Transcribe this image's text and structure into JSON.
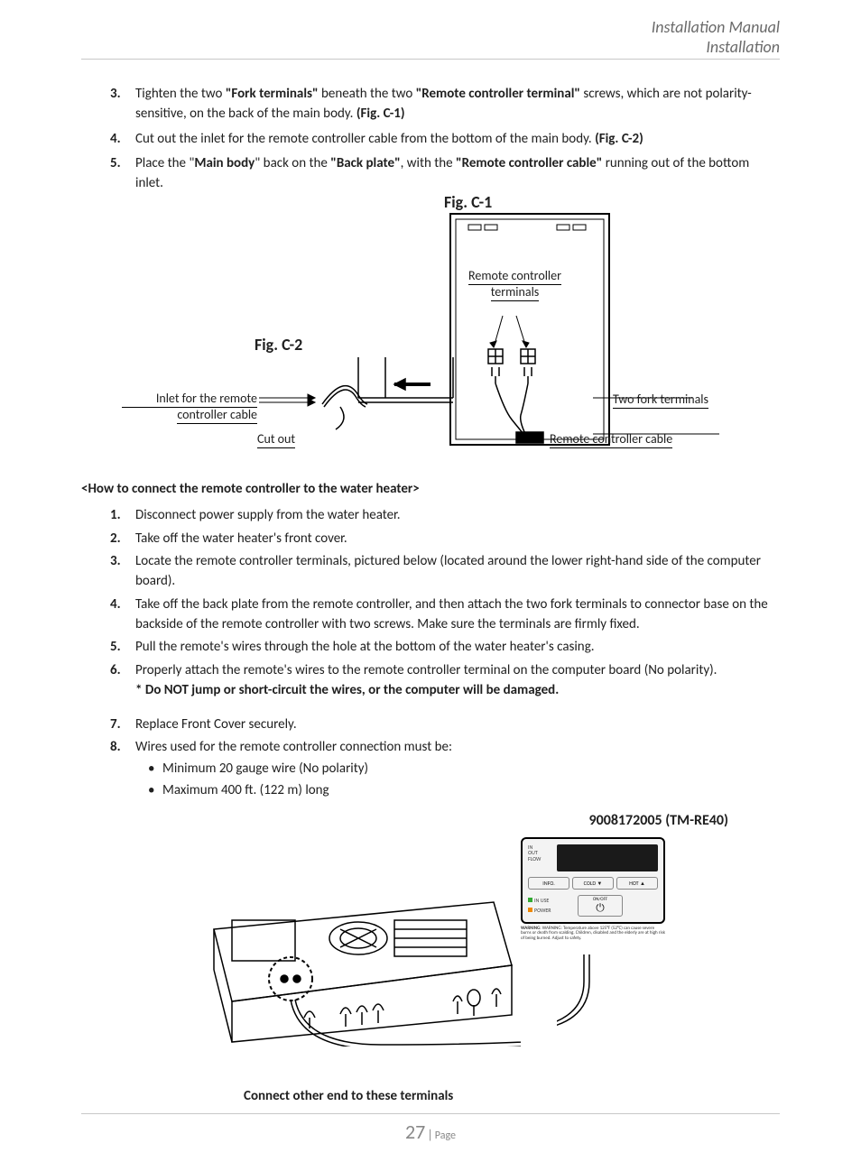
{
  "header": {
    "line1": "Installation Manual",
    "line2": "Installation"
  },
  "top_steps": [
    {
      "n": "3.",
      "html": "Tighten the two <b>\"Fork terminals\"</b> beneath the two <b>\"Remote controller terminal\"</b> screws, which are not polarity-sensitive, on the back of the main body. <b>(Fig. C-1)</b>"
    },
    {
      "n": "4.",
      "html": "Cut out the inlet for the remote controller cable from the bottom of the main body. <b>(Fig. C-2)</b>"
    },
    {
      "n": "5.",
      "html": "Place the \"<b>Main body</b>\" back on the <b>\"Back plate\"</b>, with the <b>\"Remote controller cable\"</b> running out of the bottom inlet."
    }
  ],
  "figs": {
    "c1_title": "Fig. C-1",
    "c2_title": "Fig. C-2",
    "labels": {
      "remote_terminals": "Remote controller\nterminals",
      "two_fork": "Two fork terminals",
      "remote_cable": "Remote controller cable",
      "inlet_line1": "Inlet for the remote",
      "inlet_line2": "controller cable",
      "cutout": "Cut out"
    }
  },
  "section_head": "<How to connect the remote controller to the water heater>",
  "steps": [
    {
      "n": "1.",
      "text": "Disconnect power supply from the water heater."
    },
    {
      "n": "2.",
      "text": "Take off the water heater's front cover."
    },
    {
      "n": "3.",
      "text": "Locate the remote controller terminals, pictured below (located around the lower right-hand side of the computer board)."
    },
    {
      "n": "4.",
      "text": "Take off the back plate from the remote controller, and then attach the two fork terminals to connector base on the backside of the remote controller with two screws.  Make sure the terminals are firmly fixed."
    },
    {
      "n": "5.",
      "text": "Pull the remote's wires through the hole at the bottom of the water heater's casing."
    },
    {
      "n": "6.",
      "text": "Properly attach the remote's wires to the remote controller terminal on the computer board (No polarity)."
    }
  ],
  "warning": "* Do NOT jump or short-circuit the wires, or the computer will be damaged.",
  "steps2": [
    {
      "n": "7.",
      "text": "Replace Front Cover securely."
    },
    {
      "n": "8.",
      "text": "Wires used for the remote controller connection must be:"
    }
  ],
  "bullets": [
    "Minimum 20 gauge wire (No polarity)",
    "Maximum 400 ft. (122 m) long"
  ],
  "device": {
    "part_number": "9008172005 (TM-RE40)",
    "remote_buttons": {
      "info": "INFO.",
      "cold": "COLD ▼",
      "hot": "HOT ▲",
      "onoff": "ON/OFF"
    },
    "remote_labels": {
      "in": "IN",
      "out": "OUT",
      "flow": "FLOW",
      "inuse": "IN USE",
      "power": "POWER"
    },
    "warning_text": "WARNING: Temperature above 125°F (52°C) can cause severe burns or death from scalding. Children, disabled and the elderly are at high risk of being burned. Adjust to safety."
  },
  "bottom_caption": "Connect other end to these terminals",
  "footer": {
    "page_num": "27",
    "page_label": "Page"
  }
}
